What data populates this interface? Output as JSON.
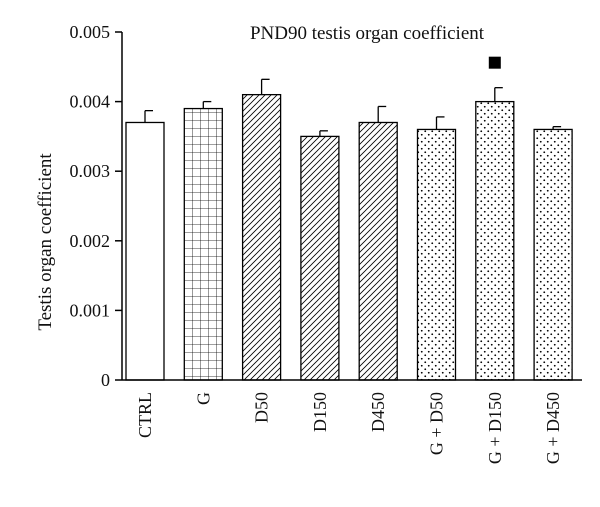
{
  "chart_data": {
    "type": "bar",
    "title": "PND90 testis organ coefficient",
    "xlabel": "",
    "ylabel": "Testis organ coefficient",
    "ylim": [
      0,
      0.005
    ],
    "yticks": [
      {
        "value": 0,
        "label": "0"
      },
      {
        "value": 0.001,
        "label": "0.001"
      },
      {
        "value": 0.002,
        "label": "0.002"
      },
      {
        "value": 0.003,
        "label": "0.003"
      },
      {
        "value": 0.004,
        "label": "0.004"
      },
      {
        "value": 0.005,
        "label": "0.005"
      }
    ],
    "categories": [
      "CTRL",
      "G",
      "D50",
      "D150",
      "D450",
      "G + D50",
      "G + D150",
      "G + D450"
    ],
    "values": [
      0.0037,
      0.0039,
      0.0041,
      0.0035,
      0.0037,
      0.0036,
      0.004,
      0.0036
    ],
    "errors": [
      0.00017,
      0.0001,
      0.00022,
      8e-05,
      0.00023,
      0.00018,
      0.0002,
      4e-05
    ],
    "patterns": [
      "none",
      "grid",
      "hatch",
      "hatch",
      "hatch",
      "dots",
      "dots",
      "dots"
    ],
    "significance_marker": {
      "category": "G + D150",
      "symbol": "square"
    },
    "grid": false,
    "legend": "none"
  }
}
